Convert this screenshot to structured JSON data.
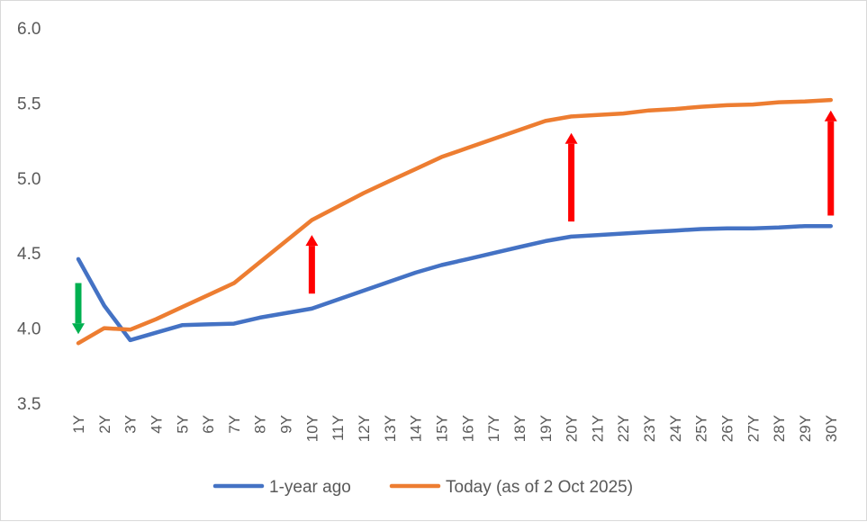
{
  "chart_data": {
    "type": "line",
    "title": "",
    "xlabel": "",
    "ylabel": "",
    "categories": [
      "1Y",
      "2Y",
      "3Y",
      "4Y",
      "5Y",
      "6Y",
      "7Y",
      "8Y",
      "9Y",
      "10Y",
      "11Y",
      "12Y",
      "13Y",
      "14Y",
      "15Y",
      "16Y",
      "17Y",
      "18Y",
      "19Y",
      "20Y",
      "21Y",
      "22Y",
      "23Y",
      "24Y",
      "25Y",
      "26Y",
      "27Y",
      "28Y",
      "29Y",
      "30Y"
    ],
    "ylim": [
      3.5,
      6.0
    ],
    "yticks": [
      "3.5",
      "4.0",
      "4.5",
      "5.0",
      "5.5",
      "6.0"
    ],
    "grid": false,
    "legend": "bottom",
    "series": [
      {
        "name": "1-year ago",
        "color": "#4472C4",
        "values": [
          4.46,
          4.15,
          3.92,
          3.97,
          4.02,
          4.025,
          4.03,
          4.07,
          4.1,
          4.13,
          4.19,
          4.25,
          4.31,
          4.37,
          4.42,
          4.46,
          4.5,
          4.54,
          4.58,
          4.61,
          4.62,
          4.63,
          4.64,
          4.65,
          4.66,
          4.665,
          4.665,
          4.67,
          4.68,
          4.68
        ]
      },
      {
        "name": "Today (as of 2 Oct 2025)",
        "color": "#ED7D31",
        "values": [
          3.9,
          4.0,
          3.99,
          4.06,
          4.14,
          4.22,
          4.3,
          4.44,
          4.58,
          4.72,
          4.81,
          4.9,
          4.98,
          5.06,
          5.14,
          5.2,
          5.26,
          5.32,
          5.38,
          5.41,
          5.42,
          5.43,
          5.45,
          5.46,
          5.475,
          5.485,
          5.49,
          5.505,
          5.51,
          5.52
        ]
      }
    ],
    "annotations": [
      {
        "type": "arrow",
        "direction": "down",
        "color": "#00B050",
        "at": "1Y",
        "from": 4.3,
        "to": 3.96
      },
      {
        "type": "arrow",
        "direction": "up",
        "color": "#FF0000",
        "at": "10Y",
        "from": 4.23,
        "to": 4.62
      },
      {
        "type": "arrow",
        "direction": "up",
        "color": "#FF0000",
        "at": "20Y",
        "from": 4.71,
        "to": 5.3
      },
      {
        "type": "arrow",
        "direction": "up",
        "color": "#FF0000",
        "at": "30Y",
        "from": 4.75,
        "to": 5.45
      }
    ]
  }
}
